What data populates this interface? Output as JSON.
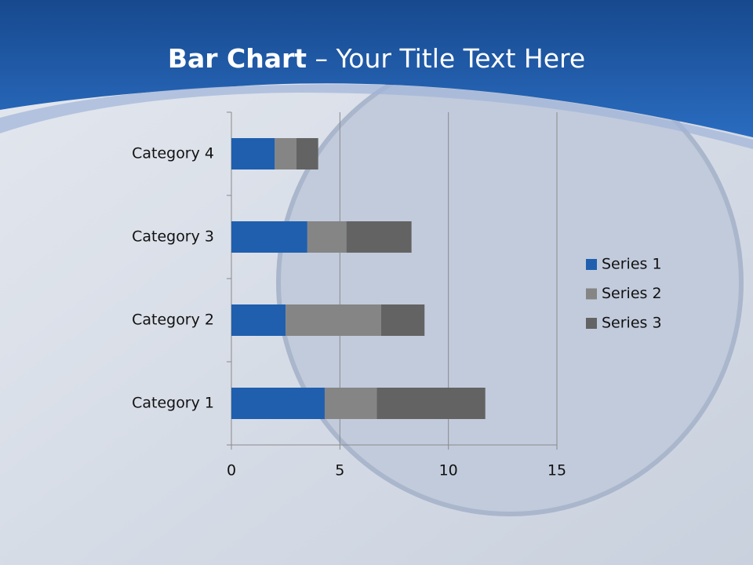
{
  "chart_data": {
    "type": "stacked-bar-horizontal",
    "title_emphasis": "Bar Chart",
    "title": "– Your Title Text Here",
    "categories": [
      "Category 1",
      "Category 2",
      "Category 3",
      "Category 4"
    ],
    "series": [
      {
        "name": "Series 1",
        "color": "#1f5fae",
        "values": [
          4.3,
          2.5,
          3.5,
          2
        ]
      },
      {
        "name": "Series 2",
        "color": "#858585",
        "values": [
          2.4,
          4.4,
          1.8,
          1
        ]
      },
      {
        "name": "Series 3",
        "color": "#636363",
        "values": [
          5,
          2,
          3,
          1
        ]
      }
    ],
    "xlim": [
      0,
      15
    ],
    "xticks": [
      0,
      5,
      10,
      15
    ],
    "grid": true,
    "legend": "right"
  }
}
